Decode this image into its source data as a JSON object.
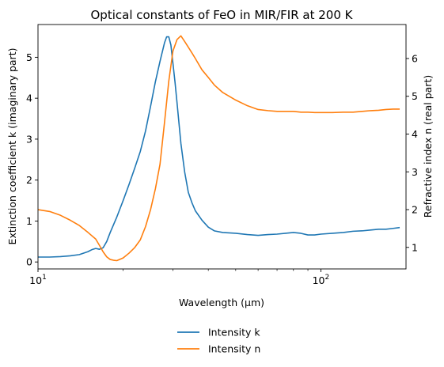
{
  "chart_data": {
    "type": "line",
    "title": "Optical constants of FeO in MIR/FIR at 200 K",
    "xlabel": "Wavelength (μm)",
    "xscale": "log",
    "xlim": [
      10,
      200
    ],
    "x_ticks": [
      {
        "value": 10,
        "label": "10¹"
      },
      {
        "value": 100,
        "label": "10²"
      }
    ],
    "y_left": {
      "label": "Extinction coefficient k (imaginary part)",
      "lim": [
        -0.17,
        5.8
      ],
      "ticks": [
        0,
        1,
        2,
        3,
        4,
        5
      ]
    },
    "y_right": {
      "label": "Refractive index n (real part)",
      "lim": [
        0.43,
        6.9
      ],
      "ticks": [
        1,
        2,
        3,
        4,
        5,
        6
      ]
    },
    "grid": false,
    "legend": {
      "placement": "bottom-center, outside plot"
    },
    "series": [
      {
        "name": "Intensity k",
        "axis": "left",
        "color": "#1f77b4",
        "x": [
          10,
          11,
          12,
          13,
          14,
          15,
          15.5,
          16,
          16.5,
          17,
          17.5,
          18,
          19,
          20,
          21,
          22,
          23,
          24,
          25,
          26,
          27,
          28,
          28.5,
          29,
          29.5,
          30,
          30.5,
          31,
          32,
          33,
          34,
          35,
          36,
          38,
          40,
          42,
          45,
          50,
          55,
          60,
          65,
          70,
          75,
          80,
          85,
          90,
          95,
          100,
          110,
          120,
          130,
          140,
          150,
          160,
          170,
          180,
          190
        ],
        "y": [
          0.12,
          0.12,
          0.13,
          0.15,
          0.18,
          0.25,
          0.3,
          0.33,
          0.31,
          0.35,
          0.5,
          0.72,
          1.1,
          1.5,
          1.9,
          2.3,
          2.7,
          3.2,
          3.8,
          4.4,
          4.9,
          5.35,
          5.5,
          5.5,
          5.3,
          4.85,
          4.4,
          3.9,
          2.9,
          2.2,
          1.7,
          1.45,
          1.25,
          1.02,
          0.85,
          0.76,
          0.72,
          0.7,
          0.67,
          0.65,
          0.67,
          0.68,
          0.7,
          0.72,
          0.7,
          0.66,
          0.66,
          0.68,
          0.7,
          0.72,
          0.75,
          0.76,
          0.78,
          0.8,
          0.8,
          0.82,
          0.84
        ]
      },
      {
        "name": "Intensity n",
        "axis": "right",
        "color": "#ff7f0e",
        "x": [
          10,
          11,
          12,
          13,
          14,
          15,
          16,
          16.5,
          17,
          17.5,
          18,
          18.5,
          19,
          20,
          21,
          22,
          23,
          24,
          25,
          26,
          27,
          28,
          29,
          30,
          31,
          32,
          33,
          34,
          35,
          36,
          38,
          40,
          42,
          45,
          50,
          55,
          60,
          65,
          70,
          75,
          80,
          85,
          90,
          95,
          100,
          110,
          120,
          130,
          140,
          150,
          160,
          170,
          180,
          190
        ],
        "y": [
          2.0,
          1.95,
          1.85,
          1.72,
          1.58,
          1.4,
          1.22,
          1.05,
          0.88,
          0.75,
          0.68,
          0.66,
          0.65,
          0.72,
          0.85,
          1.0,
          1.2,
          1.55,
          2.0,
          2.55,
          3.2,
          4.3,
          5.4,
          6.2,
          6.5,
          6.6,
          6.45,
          6.3,
          6.15,
          6.0,
          5.7,
          5.5,
          5.3,
          5.1,
          4.9,
          4.75,
          4.65,
          4.62,
          4.6,
          4.6,
          4.6,
          4.58,
          4.58,
          4.57,
          4.57,
          4.57,
          4.58,
          4.58,
          4.6,
          4.62,
          4.63,
          4.65,
          4.66,
          4.66
        ]
      }
    ]
  }
}
